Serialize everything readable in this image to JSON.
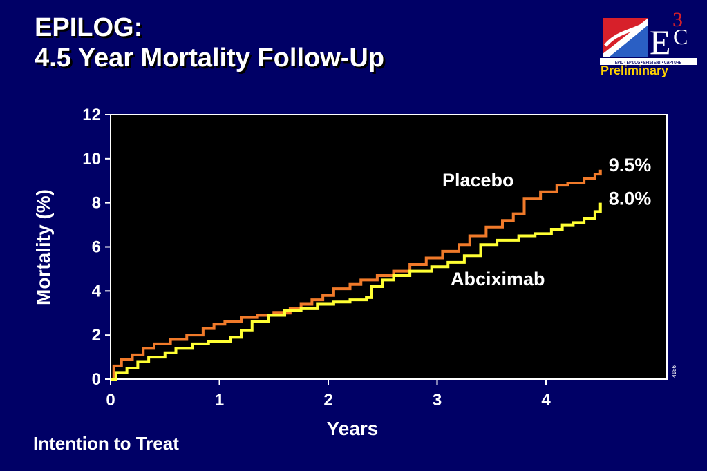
{
  "slide": {
    "title_line1": "EPILOG:",
    "title_line2": "4.5 Year Mortality Follow-Up",
    "badge": "Preliminary",
    "footnote": "Intention to Treat",
    "slide_number": "4186",
    "logo": {
      "icon": "e3c-logo-icon",
      "letters": "E",
      "superscript": "3",
      "suffix": "C",
      "tagline": "EPIC • EPILOG • EPISTENT • CAPTURE"
    }
  },
  "colors": {
    "background": "#000066",
    "plot_background": "#000000",
    "placebo": "#f07a2a",
    "abciximab": "#ffff33",
    "badge": "#ffd200"
  },
  "chart_data": {
    "type": "line",
    "title": "",
    "xlabel": "Years",
    "ylabel": "Mortality (%)",
    "xlim": [
      0,
      5
    ],
    "ylim": [
      0,
      12
    ],
    "xticks": [
      "0",
      "1",
      "2",
      "3",
      "4"
    ],
    "yticks": [
      "0",
      "2",
      "4",
      "6",
      "8",
      "10",
      "12"
    ],
    "step": true,
    "grid": false,
    "series": [
      {
        "name": "Placebo",
        "end_label": "9.5%",
        "color": "#f07a2a",
        "x": [
          0,
          0.03,
          0.1,
          0.2,
          0.3,
          0.4,
          0.55,
          0.7,
          0.85,
          0.95,
          1.05,
          1.2,
          1.35,
          1.5,
          1.65,
          1.75,
          1.85,
          1.95,
          2.05,
          2.2,
          2.3,
          2.45,
          2.6,
          2.75,
          2.9,
          3.05,
          3.2,
          3.3,
          3.45,
          3.6,
          3.7,
          3.8,
          3.95,
          4.1,
          4.2,
          4.35,
          4.45,
          4.5
        ],
        "y": [
          0,
          0.6,
          0.9,
          1.1,
          1.4,
          1.6,
          1.8,
          2.0,
          2.3,
          2.5,
          2.6,
          2.8,
          2.9,
          3.0,
          3.2,
          3.4,
          3.6,
          3.8,
          4.1,
          4.3,
          4.5,
          4.7,
          4.9,
          5.2,
          5.5,
          5.8,
          6.1,
          6.5,
          6.9,
          7.2,
          7.5,
          8.2,
          8.5,
          8.8,
          8.9,
          9.1,
          9.3,
          9.5
        ]
      },
      {
        "name": "Abciximab",
        "end_label": "8.0%",
        "color": "#ffff33",
        "x": [
          0,
          0.05,
          0.15,
          0.25,
          0.35,
          0.5,
          0.6,
          0.75,
          0.9,
          1.0,
          1.1,
          1.2,
          1.3,
          1.45,
          1.6,
          1.75,
          1.9,
          2.05,
          2.2,
          2.35,
          2.4,
          2.5,
          2.6,
          2.75,
          2.95,
          3.1,
          3.25,
          3.4,
          3.55,
          3.75,
          3.9,
          4.05,
          4.15,
          4.25,
          4.35,
          4.45,
          4.5
        ],
        "y": [
          0,
          0.3,
          0.5,
          0.8,
          1.0,
          1.2,
          1.4,
          1.6,
          1.7,
          1.7,
          1.9,
          2.2,
          2.6,
          2.9,
          3.1,
          3.2,
          3.4,
          3.5,
          3.6,
          3.7,
          4.2,
          4.5,
          4.7,
          4.9,
          5.1,
          5.3,
          5.6,
          6.1,
          6.3,
          6.5,
          6.6,
          6.8,
          7.0,
          7.1,
          7.3,
          7.6,
          8.0
        ]
      }
    ]
  }
}
